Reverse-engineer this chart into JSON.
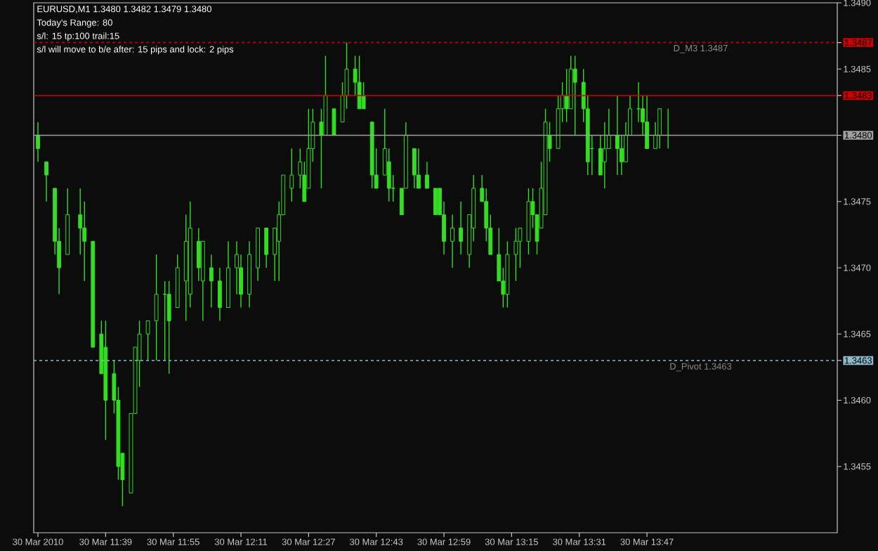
{
  "chart_data": {
    "type": "candlestick",
    "title": "EURUSD,M1  1.3480 1.3482 1.3479 1.3480",
    "annotations": [
      "Today's Range: 80",
      "s/l: 15  tp:100  trail:15",
      "s/l will move to b/e after: 15 pips   and lock: 2 pips"
    ],
    "color": "#33dd22",
    "x": [
      "2010-03-30T11:23",
      "2010-03-30T11:25",
      "2010-03-30T11:27",
      "2010-03-30T11:28",
      "2010-03-30T11:30",
      "2010-03-30T11:33",
      "2010-03-30T11:34",
      "2010-03-30T11:36",
      "2010-03-30T11:38",
      "2010-03-30T11:39",
      "2010-03-30T11:41",
      "2010-03-30T11:42",
      "2010-03-30T11:43",
      "2010-03-30T11:45",
      "2010-03-30T11:46",
      "2010-03-30T11:47",
      "2010-03-30T11:49",
      "2010-03-30T11:51",
      "2010-03-30T11:53",
      "2010-03-30T11:54",
      "2010-03-30T11:56",
      "2010-03-30T11:58",
      "2010-03-30T11:59",
      "2010-03-30T12:01",
      "2010-03-30T12:02",
      "2010-03-30T12:04",
      "2010-03-30T12:06",
      "2010-03-30T12:08",
      "2010-03-30T12:10",
      "2010-03-30T12:11",
      "2010-03-30T12:13",
      "2010-03-30T12:15",
      "2010-03-30T12:17",
      "2010-03-30T12:19",
      "2010-03-30T12:20",
      "2010-03-30T12:21",
      "2010-03-30T12:23",
      "2010-03-30T12:25",
      "2010-03-30T12:26",
      "2010-03-30T12:27",
      "2010-03-30T12:28",
      "2010-03-30T12:30",
      "2010-03-30T12:31",
      "2010-03-30T12:33",
      "2010-03-30T12:35",
      "2010-03-30T12:36",
      "2010-03-30T12:38",
      "2010-03-30T12:39",
      "2010-03-30T12:40",
      "2010-03-30T12:42",
      "2010-03-30T12:43",
      "2010-03-30T12:45",
      "2010-03-30T12:46",
      "2010-03-30T12:47",
      "2010-03-30T12:49",
      "2010-03-30T12:50",
      "2010-03-30T12:52",
      "2010-03-30T12:53",
      "2010-03-30T12:55",
      "2010-03-30T12:57",
      "2010-03-30T12:58",
      "2010-03-30T12:59",
      "2010-03-30T13:01",
      "2010-03-30T13:03",
      "2010-03-30T13:05",
      "2010-03-30T13:06",
      "2010-03-30T13:08",
      "2010-03-30T13:09",
      "2010-03-30T13:10",
      "2010-03-30T13:12",
      "2010-03-30T13:13",
      "2010-03-30T13:14",
      "2010-03-30T13:16",
      "2010-03-30T13:17",
      "2010-03-30T13:19",
      "2010-03-30T13:20",
      "2010-03-30T13:21",
      "2010-03-30T13:22",
      "2010-03-30T13:23",
      "2010-03-30T13:24",
      "2010-03-30T13:26",
      "2010-03-30T13:27",
      "2010-03-30T13:28",
      "2010-03-30T13:29",
      "2010-03-30T13:30",
      "2010-03-30T13:32",
      "2010-03-30T13:33",
      "2010-03-30T13:34",
      "2010-03-30T13:36",
      "2010-03-30T13:37",
      "2010-03-30T13:38",
      "2010-03-30T13:40",
      "2010-03-30T13:41",
      "2010-03-30T13:42",
      "2010-03-30T13:43",
      "2010-03-30T13:45",
      "2010-03-30T13:46",
      "2010-03-30T13:47",
      "2010-03-30T13:49",
      "2010-03-30T13:50",
      "2010-03-30T13:52"
    ],
    "ohlc": [
      [
        1.348,
        1.3481,
        1.3478,
        1.3479
      ],
      [
        1.3478,
        1.3478,
        1.3475,
        1.3477
      ],
      [
        1.3476,
        1.3476,
        1.3471,
        1.3472
      ],
      [
        1.3472,
        1.3473,
        1.3468,
        1.347
      ],
      [
        1.3471,
        1.3476,
        1.3471,
        1.3474
      ],
      [
        1.3474,
        1.3476,
        1.3471,
        1.3473
      ],
      [
        1.3473,
        1.3475,
        1.3469,
        1.3472
      ],
      [
        1.3472,
        1.3472,
        1.3464,
        1.3464
      ],
      [
        1.3465,
        1.3466,
        1.3462,
        1.3462
      ],
      [
        1.3464,
        1.3466,
        1.3457,
        1.346
      ],
      [
        1.3462,
        1.3463,
        1.3459,
        1.346
      ],
      [
        1.346,
        1.3461,
        1.3454,
        1.3455
      ],
      [
        1.3456,
        1.3456,
        1.3452,
        1.3454
      ],
      [
        1.3453,
        1.3459,
        1.3453,
        1.3459
      ],
      [
        1.3459,
        1.3464,
        1.3459,
        1.3464
      ],
      [
        1.3463,
        1.3466,
        1.3461,
        1.3465
      ],
      [
        1.3465,
        1.3466,
        1.3463,
        1.3466
      ],
      [
        1.3466,
        1.3471,
        1.3463,
        1.3468
      ],
      [
        1.3468,
        1.3469,
        1.3463,
        1.3468
      ],
      [
        1.3468,
        1.3469,
        1.3462,
        1.3466
      ],
      [
        1.3467,
        1.3471,
        1.3467,
        1.347
      ],
      [
        1.3469,
        1.3474,
        1.3466,
        1.3472
      ],
      [
        1.3468,
        1.3475,
        1.3467,
        1.3473
      ],
      [
        1.3472,
        1.3473,
        1.3469,
        1.347
      ],
      [
        1.3469,
        1.3472,
        1.3466,
        1.3472
      ],
      [
        1.347,
        1.3471,
        1.3467,
        1.3469
      ],
      [
        1.3469,
        1.347,
        1.3466,
        1.3467
      ],
      [
        1.3467,
        1.3472,
        1.3467,
        1.347
      ],
      [
        1.347,
        1.3472,
        1.3468,
        1.3471
      ],
      [
        1.347,
        1.3471,
        1.3467,
        1.3468
      ],
      [
        1.3468,
        1.3472,
        1.3467,
        1.3471
      ],
      [
        1.347,
        1.3473,
        1.3469,
        1.3473
      ],
      [
        1.3473,
        1.3473,
        1.347,
        1.3471
      ],
      [
        1.3471,
        1.3473,
        1.3469,
        1.3473
      ],
      [
        1.3472,
        1.3475,
        1.3469,
        1.3474
      ],
      [
        1.3474,
        1.3477,
        1.3474,
        1.3477
      ],
      [
        1.3476,
        1.3479,
        1.3475,
        1.3477
      ],
      [
        1.3477,
        1.3479,
        1.3476,
        1.3478
      ],
      [
        1.3477,
        1.3478,
        1.3475,
        1.3475
      ],
      [
        1.3476,
        1.3482,
        1.3476,
        1.3479
      ],
      [
        1.3479,
        1.3482,
        1.3478,
        1.3481
      ],
      [
        1.3481,
        1.3482,
        1.3476,
        1.348
      ],
      [
        1.348,
        1.3486,
        1.348,
        1.3483
      ],
      [
        1.3482,
        1.3482,
        1.348,
        1.348
      ],
      [
        1.3481,
        1.3484,
        1.3481,
        1.3483
      ],
      [
        1.3483,
        1.3487,
        1.3482,
        1.3485
      ],
      [
        1.3485,
        1.3486,
        1.3483,
        1.3484
      ],
      [
        1.3484,
        1.3486,
        1.3482,
        1.3482
      ],
      [
        1.3483,
        1.3484,
        1.3482,
        1.3482
      ],
      [
        1.3481,
        1.3481,
        1.3476,
        1.3477
      ],
      [
        1.3477,
        1.3479,
        1.3476,
        1.3476
      ],
      [
        1.3477,
        1.3482,
        1.3477,
        1.3479
      ],
      [
        1.3478,
        1.3479,
        1.3475,
        1.3476
      ],
      [
        1.3476,
        1.3477,
        1.3475,
        1.3476
      ],
      [
        1.3476,
        1.3476,
        1.3474,
        1.3474
      ],
      [
        1.3476,
        1.3481,
        1.3476,
        1.348
      ],
      [
        1.3479,
        1.3479,
        1.3476,
        1.3477
      ],
      [
        1.3477,
        1.3479,
        1.3476,
        1.3476
      ],
      [
        1.3477,
        1.3478,
        1.3476,
        1.3476
      ],
      [
        1.3476,
        1.3476,
        1.3474,
        1.3474
      ],
      [
        1.3476,
        1.3476,
        1.3474,
        1.3474
      ],
      [
        1.3474,
        1.3475,
        1.3471,
        1.3472
      ],
      [
        1.3472,
        1.3474,
        1.347,
        1.3473
      ],
      [
        1.3473,
        1.3475,
        1.3471,
        1.3472
      ],
      [
        1.3471,
        1.3474,
        1.347,
        1.3474
      ],
      [
        1.3473,
        1.3477,
        1.3472,
        1.3476
      ],
      [
        1.3476,
        1.3477,
        1.3475,
        1.3475
      ],
      [
        1.3475,
        1.3476,
        1.3472,
        1.3473
      ],
      [
        1.3473,
        1.3474,
        1.3471,
        1.3471
      ],
      [
        1.3471,
        1.3473,
        1.3469,
        1.3469
      ],
      [
        1.3469,
        1.347,
        1.3467,
        1.3468
      ],
      [
        1.3468,
        1.3472,
        1.3467,
        1.3471
      ],
      [
        1.3471,
        1.3473,
        1.3469,
        1.3472
      ],
      [
        1.3472,
        1.3473,
        1.347,
        1.3473
      ],
      [
        1.3472,
        1.3476,
        1.3471,
        1.3475
      ],
      [
        1.3475,
        1.3476,
        1.3473,
        1.3474
      ],
      [
        1.3474,
        1.3474,
        1.3471,
        1.3472
      ],
      [
        1.3473,
        1.3478,
        1.3473,
        1.3476
      ],
      [
        1.3474,
        1.3482,
        1.3474,
        1.3481
      ],
      [
        1.348,
        1.3481,
        1.3478,
        1.3479
      ],
      [
        1.3479,
        1.3483,
        1.3479,
        1.3482
      ],
      [
        1.3482,
        1.3484,
        1.3481,
        1.3483
      ],
      [
        1.3483,
        1.3485,
        1.3481,
        1.3482
      ],
      [
        1.3482,
        1.3486,
        1.3482,
        1.3485
      ],
      [
        1.3485,
        1.3486,
        1.348,
        1.3484
      ],
      [
        1.3484,
        1.3485,
        1.3481,
        1.3482
      ],
      [
        1.3482,
        1.3483,
        1.3477,
        1.3478
      ],
      [
        1.3479,
        1.348,
        1.3477,
        1.3479
      ],
      [
        1.3479,
        1.348,
        1.3477,
        1.3477
      ],
      [
        1.3478,
        1.3481,
        1.3476,
        1.3479
      ],
      [
        1.3479,
        1.3482,
        1.3479,
        1.348
      ],
      [
        1.348,
        1.3483,
        1.3477,
        1.3479
      ],
      [
        1.3479,
        1.348,
        1.3477,
        1.3478
      ],
      [
        1.3478,
        1.3481,
        1.3478,
        1.348
      ],
      [
        1.348,
        1.3483,
        1.348,
        1.3482
      ],
      [
        1.3482,
        1.3484,
        1.3481,
        1.3482
      ],
      [
        1.3482,
        1.3483,
        1.348,
        1.3481
      ],
      [
        1.3481,
        1.3483,
        1.3479,
        1.3479
      ],
      [
        1.3479,
        1.3481,
        1.3479,
        1.348
      ],
      [
        1.348,
        1.3482,
        1.3479,
        1.3482
      ],
      [
        1.348,
        1.3482,
        1.3479,
        1.348
      ]
    ],
    "xlim": [
      "2010-03-30T11:22",
      "2010-03-30T14:32"
    ],
    "xticks": [
      {
        "value": "2010-03-30T11:23",
        "label": "30 Mar 2010"
      },
      {
        "value": "2010-03-30T11:39",
        "label": "30 Mar 11:39"
      },
      {
        "value": "2010-03-30T11:55",
        "label": "30 Mar 11:55"
      },
      {
        "value": "2010-03-30T12:11",
        "label": "30 Mar 12:11"
      },
      {
        "value": "2010-03-30T12:27",
        "label": "30 Mar 12:27"
      },
      {
        "value": "2010-03-30T12:43",
        "label": "30 Mar 12:43"
      },
      {
        "value": "2010-03-30T12:59",
        "label": "30 Mar 12:59"
      },
      {
        "value": "2010-03-30T13:15",
        "label": "30 Mar 13:15"
      },
      {
        "value": "2010-03-30T13:31",
        "label": "30 Mar 13:31"
      },
      {
        "value": "2010-03-30T13:47",
        "label": "30 Mar 13:47"
      }
    ],
    "ylim": [
      1.345,
      1.349
    ],
    "yticks": [
      {
        "value": 1.3455,
        "label": "1.3455"
      },
      {
        "value": 1.346,
        "label": "1.3460"
      },
      {
        "value": 1.3463,
        "label": "1.3463"
      },
      {
        "value": 1.3465,
        "label": "1.3465"
      },
      {
        "value": 1.347,
        "label": "1.3470"
      },
      {
        "value": 1.3475,
        "label": "1.3475"
      },
      {
        "value": 1.348,
        "label": "1.3480"
      },
      {
        "value": 1.3483,
        "label": "1.3483"
      },
      {
        "value": 1.3485,
        "label": "1.3485"
      },
      {
        "value": 1.3487,
        "label": "1.3487"
      },
      {
        "value": 1.349,
        "label": "1.3490"
      }
    ],
    "ref_lines": [
      {
        "axis": "y",
        "value": 1.3487,
        "label": "D_M3 1.3487",
        "color": "#cc0000",
        "line_style": "dashed"
      },
      {
        "axis": "y",
        "value": 1.3483,
        "color": "#cc0000",
        "line_style": "solid"
      },
      {
        "axis": "y",
        "value": 1.348,
        "color": "#a0a0a0",
        "line_style": "solid"
      },
      {
        "axis": "y",
        "value": 1.3463,
        "label": "D_Pivot 1.3463",
        "color": "#8fb8cc",
        "line_style": "dashed"
      }
    ]
  }
}
